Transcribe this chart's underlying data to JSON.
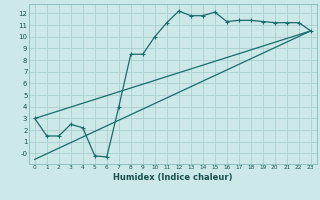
{
  "xlabel": "Humidex (Indice chaleur)",
  "background_color": "#cce8e8",
  "grid_color": "#aad0d0",
  "line_color": "#1a6b6b",
  "xlim": [
    -0.5,
    23.5
  ],
  "ylim": [
    -0.9,
    12.8
  ],
  "xticks": [
    0,
    1,
    2,
    3,
    4,
    5,
    6,
    7,
    8,
    9,
    10,
    11,
    12,
    13,
    14,
    15,
    16,
    17,
    18,
    19,
    20,
    21,
    22,
    23
  ],
  "yticks": [
    0,
    1,
    2,
    3,
    4,
    5,
    6,
    7,
    8,
    9,
    10,
    11,
    12
  ],
  "ytick_labels": [
    "-0",
    "1",
    "2",
    "3",
    "4",
    "5",
    "6",
    "7",
    "8",
    "9",
    "10",
    "11",
    "12"
  ],
  "line1_x": [
    0,
    1,
    2,
    3,
    4,
    5,
    6,
    7,
    8,
    9,
    10,
    11,
    12,
    13,
    14,
    15,
    16,
    17,
    18,
    19,
    20,
    21,
    22,
    23
  ],
  "line1_y": [
    3.0,
    1.5,
    1.5,
    2.5,
    2.2,
    -0.2,
    -0.3,
    4.0,
    8.5,
    8.5,
    10.0,
    11.2,
    12.2,
    11.8,
    11.8,
    12.1,
    11.3,
    11.4,
    11.4,
    11.3,
    11.2,
    11.2,
    11.2,
    10.5
  ],
  "line2_x": [
    0,
    23
  ],
  "line2_y": [
    3.0,
    10.5
  ],
  "line3_x": [
    0,
    23
  ],
  "line3_y": [
    -0.5,
    10.5
  ],
  "marker": "+"
}
